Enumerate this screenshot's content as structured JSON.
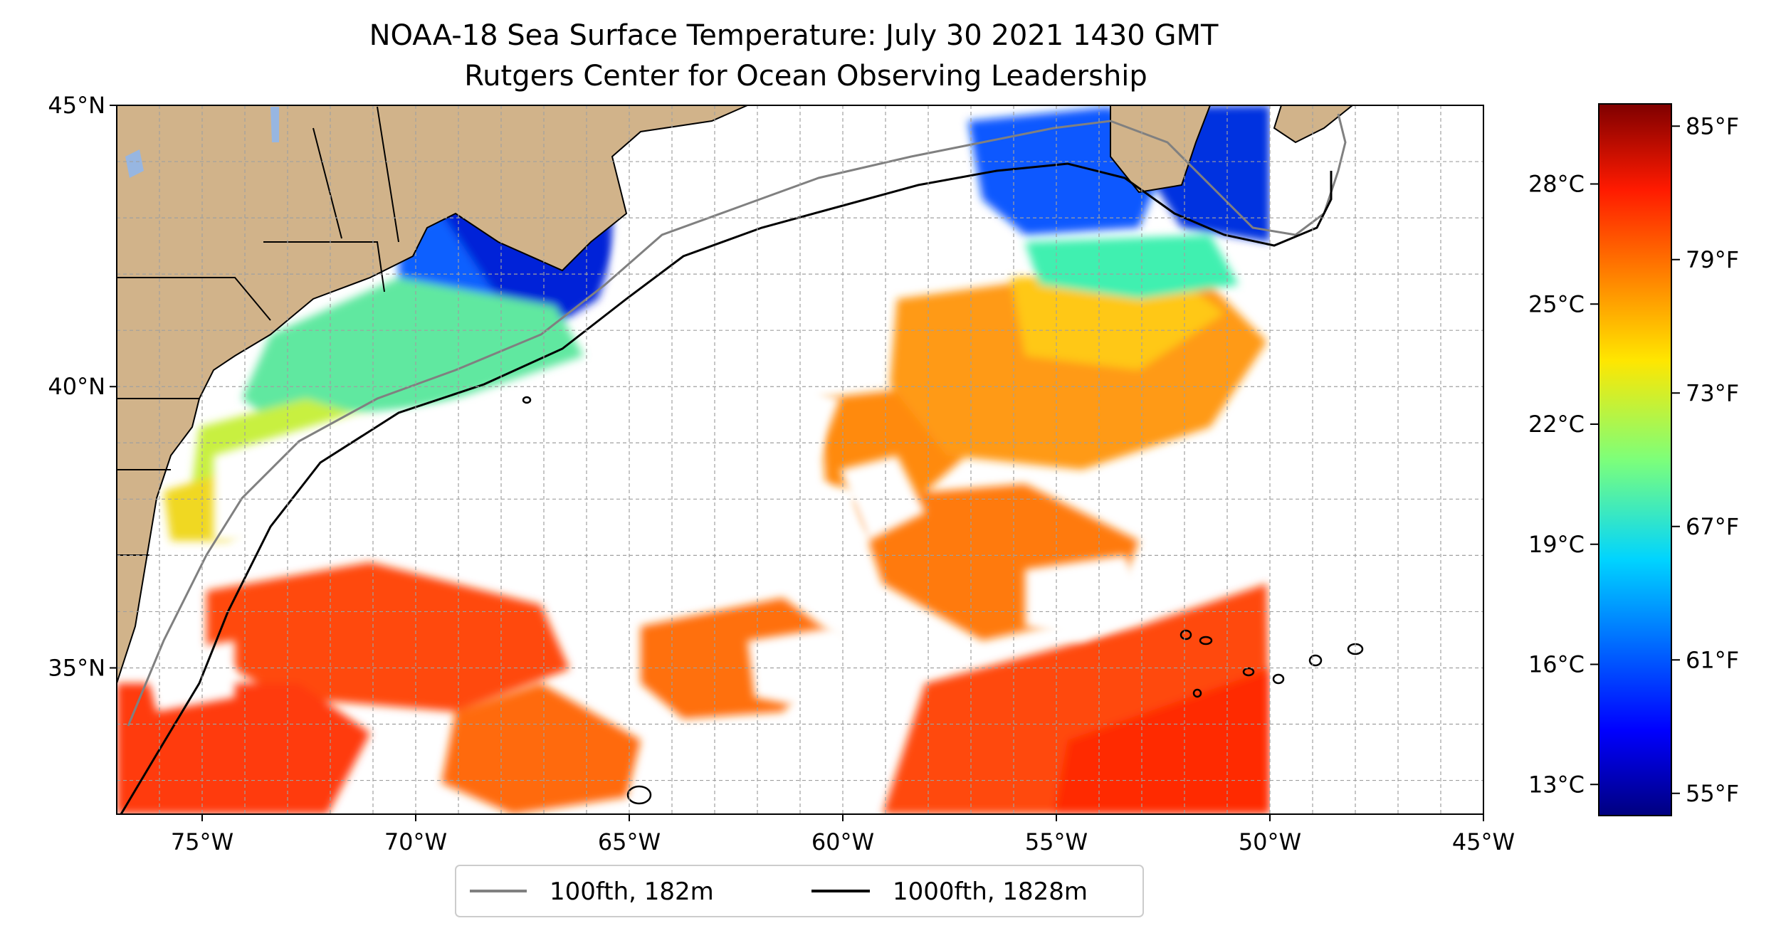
{
  "title": {
    "line1": "NOAA-18 Sea Surface Temperature: July 30 2021 1430 GMT",
    "line2": "Rutgers Center for Ocean Observing Leadership"
  },
  "map": {
    "lon_range": [
      -77,
      -45
    ],
    "lat_range": [
      32.4,
      45
    ],
    "x_ticks": [
      "75°W",
      "70°W",
      "65°W",
      "60°W",
      "55°W",
      "50°W",
      "45°W"
    ],
    "y_ticks": [
      "45°N",
      "40°N",
      "35°N"
    ],
    "gridlines": true,
    "land_color": "#d1b38a",
    "colormap": "jet"
  },
  "colorbar": {
    "celsius_ticks": [
      "28°C",
      "25°C",
      "22°C",
      "19°C",
      "16°C",
      "13°C"
    ],
    "fahrenheit_ticks": [
      "85°F",
      "79°F",
      "73°F",
      "67°F",
      "61°F",
      "55°F"
    ],
    "range_f": [
      54,
      86
    ]
  },
  "legend": {
    "placement": "bottom-center",
    "items": [
      {
        "label": "100fth, 182m",
        "color": "#808080"
      },
      {
        "label": "1000fth, 1828m",
        "color": "#000000"
      }
    ]
  }
}
